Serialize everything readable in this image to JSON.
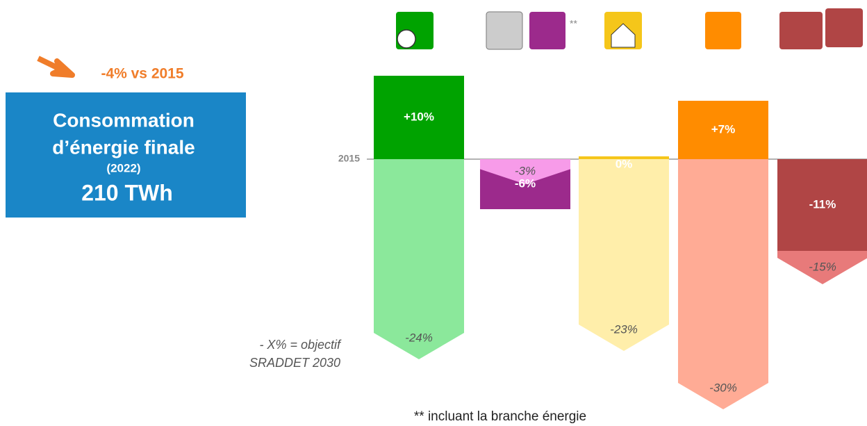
{
  "chart_data": {
    "type": "bar",
    "categories": [
      null,
      null,
      null,
      null,
      null
    ],
    "series": [
      {
        "values": [
          10,
          -6,
          0,
          7,
          -11
        ],
        "value_labels": [
          "+10%",
          "-6%",
          "0%",
          "+7%",
          "-11%"
        ],
        "colors": [
          "#00a300",
          "#9c2a8c",
          "#f5c61a",
          "#ff8c00",
          "#b04545"
        ]
      },
      {
        "values": [
          -24,
          -3,
          -23,
          -30,
          -15
        ],
        "value_labels": [
          "-24%",
          "-3%",
          "-23%",
          "-30%",
          "-15%"
        ],
        "colors": [
          "#8be89b",
          "#f79be9",
          "#ffeeaa",
          "#ffab95",
          "#e87a7a"
        ]
      }
    ],
    "ylim": [
      -32,
      12
    ],
    "yticks": [
      {
        "value": 0,
        "label": "2015"
      }
    ],
    "icon_note": "**",
    "headline": "-4% vs 2015",
    "box": {
      "line1": "Consommation",
      "line2": "d’énergie finale",
      "year": "(2022)",
      "total": "210 TWh"
    },
    "legend_note": {
      "line1": "- X% = objectif",
      "line2": "SRADDET 2030"
    },
    "footnote": "** incluant la branche énergie"
  }
}
